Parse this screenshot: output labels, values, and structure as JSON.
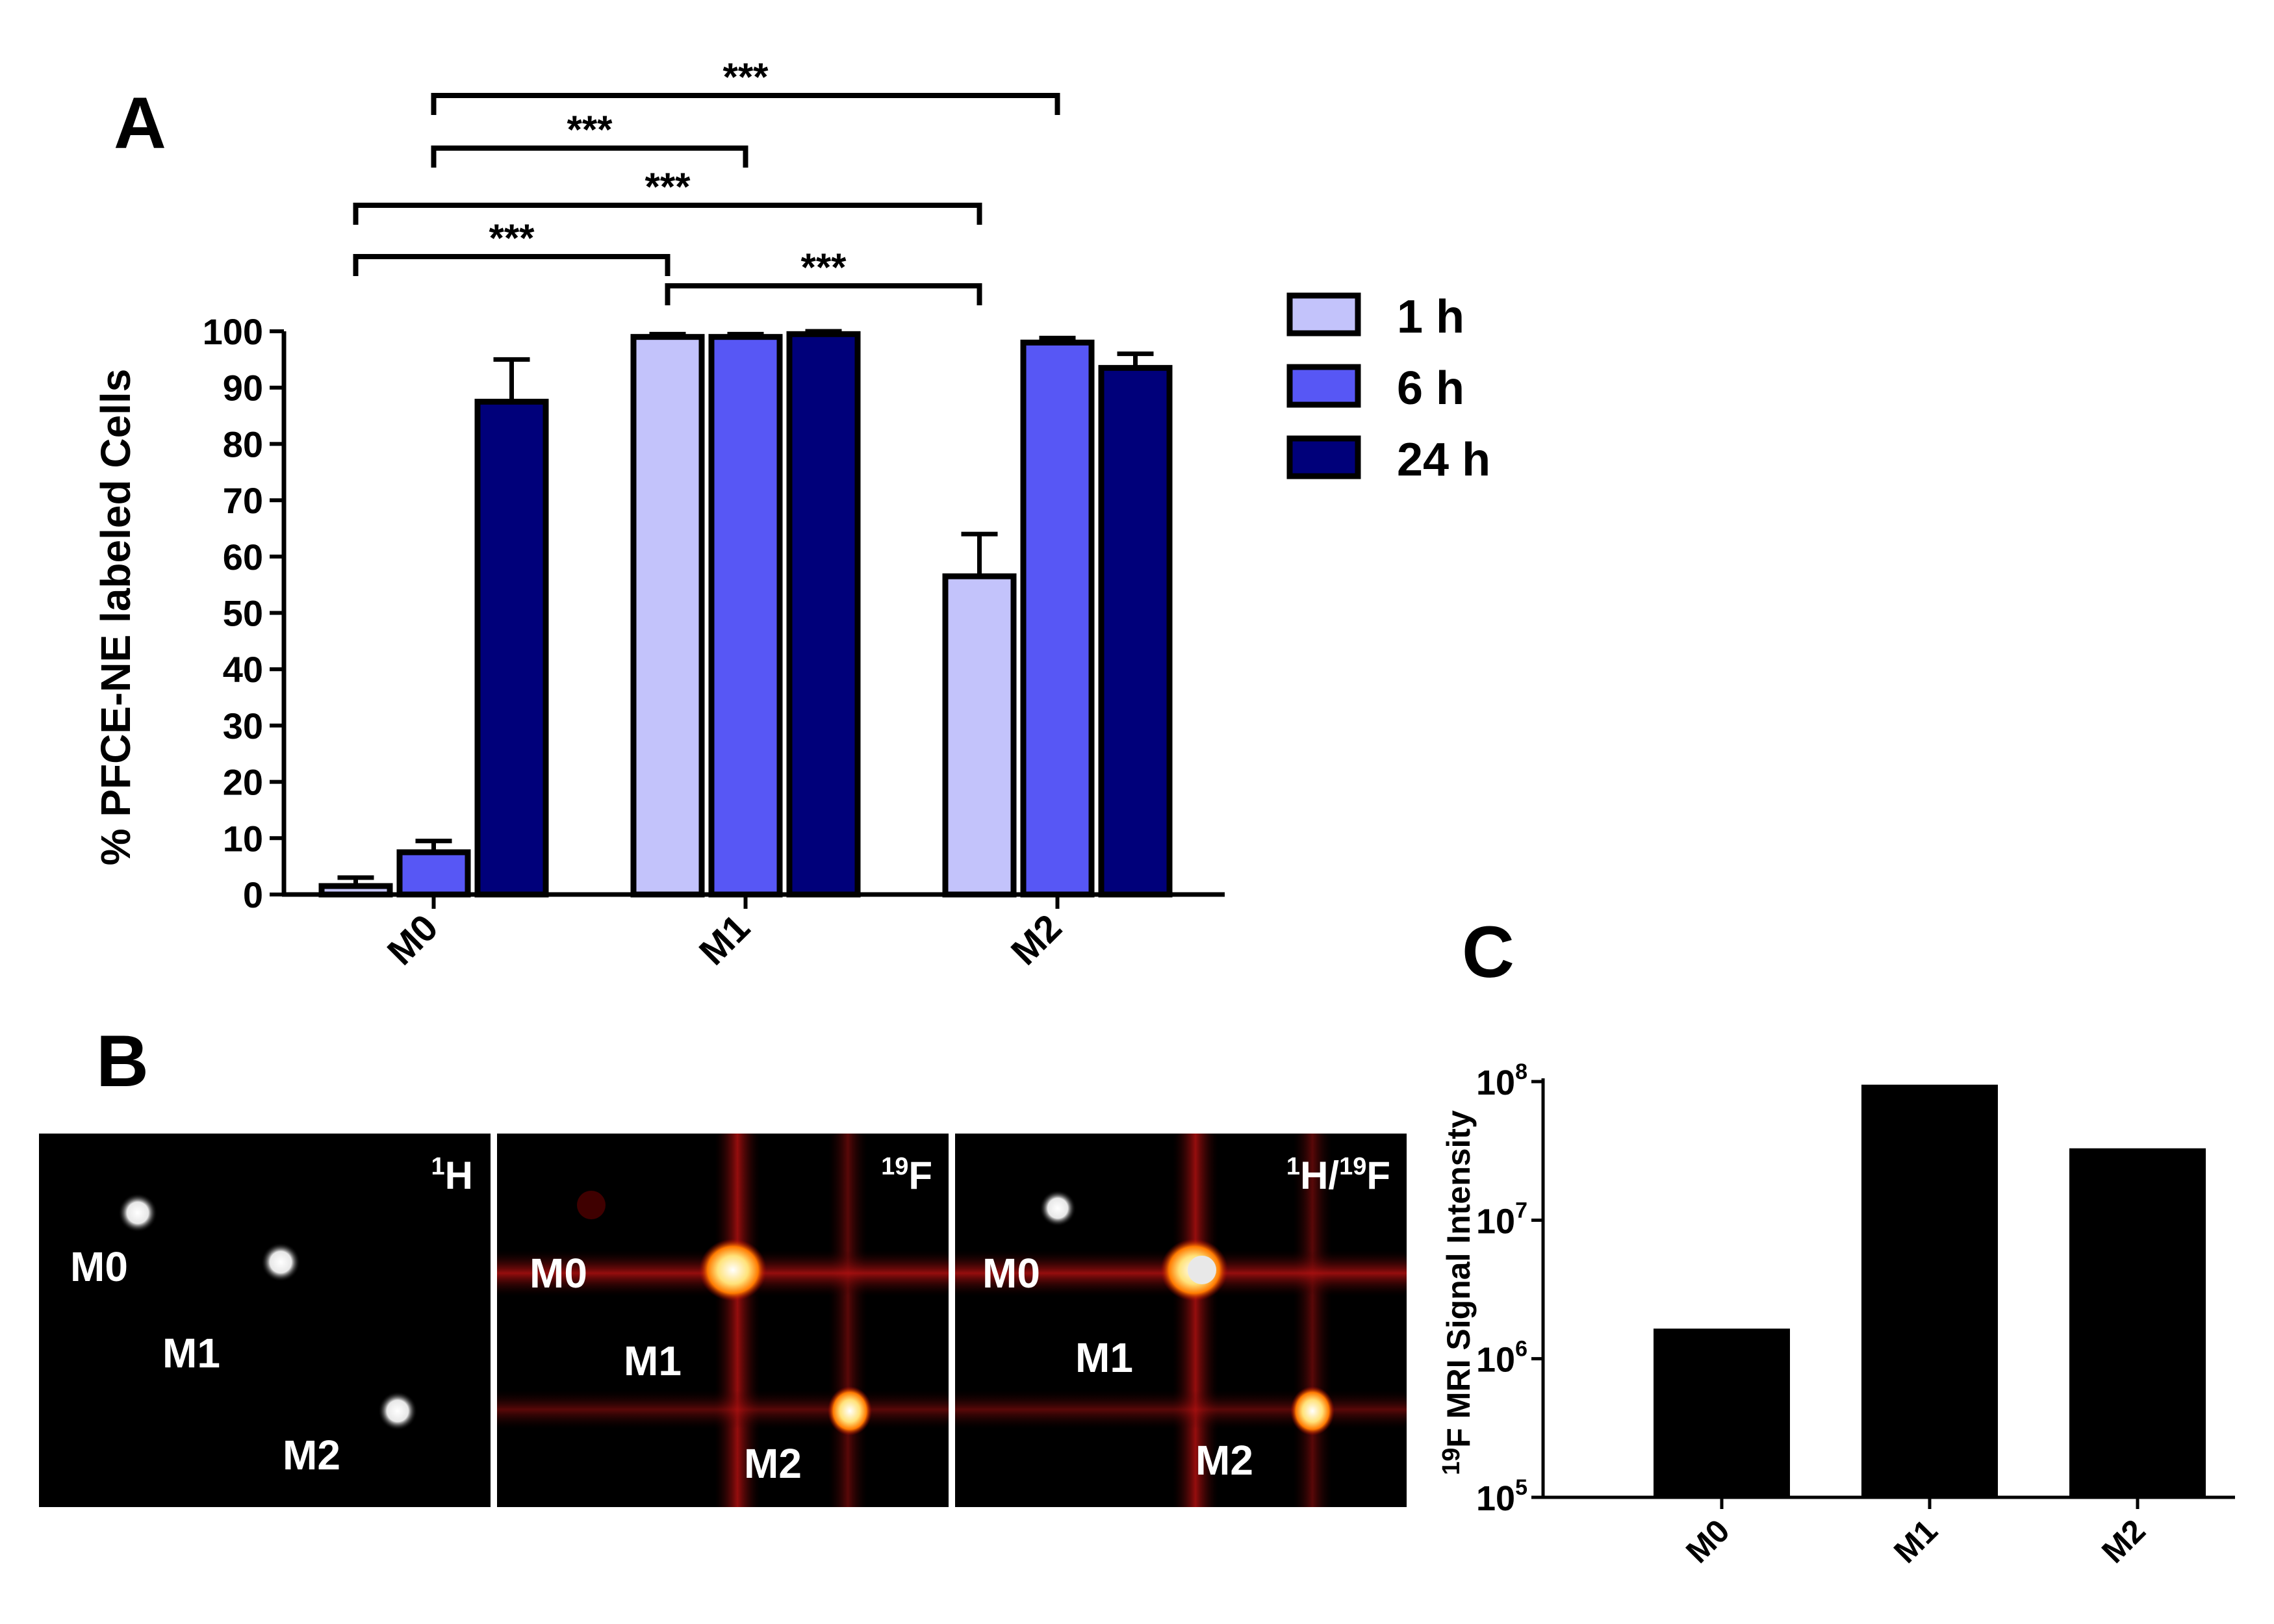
{
  "colors": {
    "h1": "#c3c3fb",
    "h6": "#5757f5",
    "h24": "#00007a",
    "axis": "#000000",
    "panel_c_bar": "#000000"
  },
  "panels": {
    "a": "A",
    "b": "B",
    "c": "C"
  },
  "chart_data": [
    {
      "type": "bar",
      "panel": "A",
      "ylabel": "% PFCE-NE labeled Cells",
      "categories": [
        "M0",
        "M1",
        "M2"
      ],
      "ylim": [
        0,
        100
      ],
      "yticks": [
        0,
        10,
        20,
        30,
        40,
        50,
        60,
        70,
        80,
        90,
        100
      ],
      "series": [
        {
          "name": "1 h",
          "color_key": "h1",
          "values": [
            1.5,
            99,
            56.5
          ],
          "errors": [
            1.5,
            0.5,
            7.5
          ]
        },
        {
          "name": "6 h",
          "color_key": "h6",
          "values": [
            7.5,
            99,
            98
          ],
          "errors": [
            2.0,
            0.5,
            0.8
          ]
        },
        {
          "name": "24 h",
          "color_key": "h24",
          "values": [
            87.5,
            99.5,
            93.5
          ],
          "errors": [
            7.5,
            0.5,
            2.5
          ]
        }
      ],
      "significance": [
        {
          "from": 0,
          "to": 3,
          "label": "***"
        },
        {
          "from": 0,
          "to": 6,
          "label": "***"
        },
        {
          "from": 1,
          "to": 4,
          "label": "***"
        },
        {
          "from": 1,
          "to": 7,
          "label": "***"
        },
        {
          "from": 3,
          "to": 6,
          "label": "***"
        }
      ],
      "legend": [
        "1 h",
        "6 h",
        "24 h"
      ]
    },
    {
      "type": "bar",
      "panel": "C",
      "ylabel_sup": "19",
      "ylabel": "F MRI Signal Intensity",
      "scale": "log",
      "categories": [
        "M0",
        "M1",
        "M2"
      ],
      "values": [
        1650000,
        95000000,
        33000000
      ],
      "ylim": [
        100000,
        100000000
      ],
      "yticks": [
        {
          "base": "10",
          "exp": "5"
        },
        {
          "base": "10",
          "exp": "6"
        },
        {
          "base": "10",
          "exp": "7"
        },
        {
          "base": "10",
          "exp": "8"
        }
      ]
    }
  ],
  "images": [
    {
      "corner": "H",
      "corner_sup": "1",
      "labels": [
        "M0",
        "M1",
        "M2"
      ]
    },
    {
      "corner": "F",
      "corner_sup": "19",
      "labels": [
        "M0",
        "M1",
        "M2"
      ]
    },
    {
      "corner_parts": [
        "1",
        "H/",
        "19",
        "F"
      ],
      "labels": [
        "M0",
        "M1",
        "M2"
      ]
    }
  ]
}
